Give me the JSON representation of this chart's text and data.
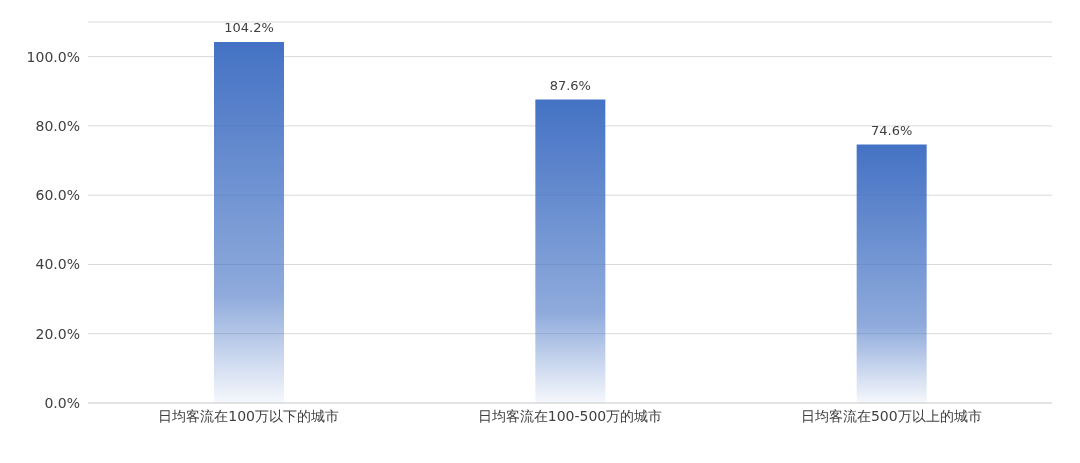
{
  "chart_data": {
    "type": "bar",
    "categories": [
      "日均客流在100万以下的城市",
      "日均客流在100-500万的城市",
      "日均客流在500万以上的城市"
    ],
    "values": [
      104.2,
      87.6,
      74.6
    ],
    "value_labels": [
      "104.2%",
      "87.6%",
      "74.6%"
    ],
    "color": "#4472c4",
    "ylim": [
      0,
      110
    ],
    "yticks": [
      {
        "value": 0,
        "label": "0.0%"
      },
      {
        "value": 20,
        "label": "20.0%"
      },
      {
        "value": 40,
        "label": "40.0%"
      },
      {
        "value": 60,
        "label": "60.0%"
      },
      {
        "value": 80,
        "label": "80.0%"
      },
      {
        "value": 100,
        "label": "100.0%"
      }
    ],
    "grid": "y"
  }
}
